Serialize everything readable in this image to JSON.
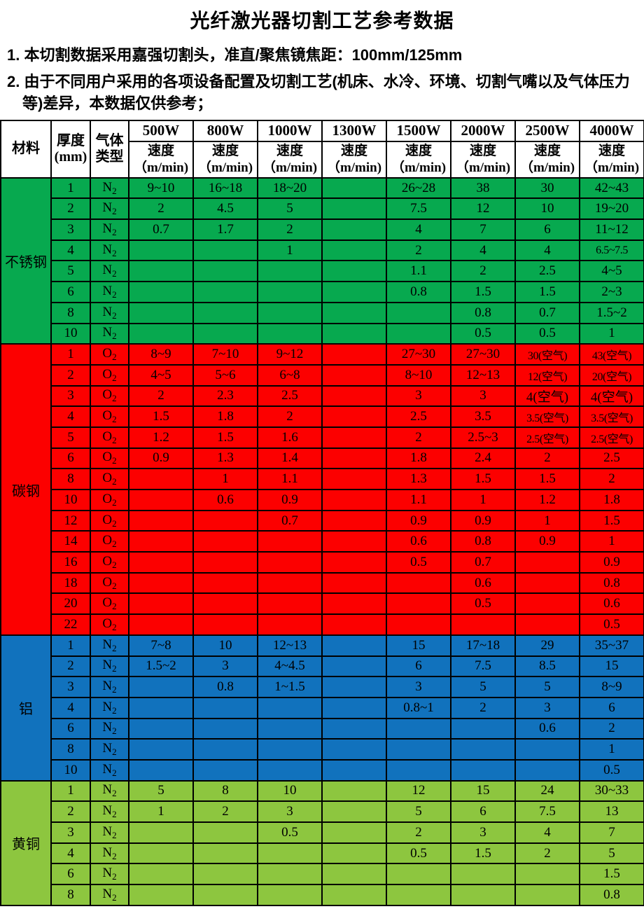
{
  "title": "光纤激光器切割工艺参考数据",
  "notes": {
    "note1": "1. 本切割数据采用嘉强切割头，准直/聚焦镜焦距：100mm/125mm",
    "note2": "2. 由于不同用户采用的各项设备配置及切割工艺(机床、水冷、环境、切割气嘴以及气体压力等)差异，本数据仅供参考；"
  },
  "table": {
    "headers": {
      "material": "材料",
      "thickness": "厚度\n(mm)",
      "gas": "气体\n类型",
      "speed": "速度",
      "speed_unit": "（m/min)"
    },
    "powers": [
      "500W",
      "800W",
      "1000W",
      "1300W",
      "1500W",
      "2000W",
      "2500W",
      "4000W"
    ],
    "colors": {
      "stainless": "#07a94f",
      "carbon": "#fc0000",
      "aluminum": "#1172bd",
      "brass": "#8dc63f"
    },
    "sections": [
      {
        "material": "不锈钢",
        "color_key": "stainless",
        "rows": [
          {
            "thickness": "1",
            "gas": "N2",
            "speeds": [
              "9~10",
              "16~18",
              "18~20",
              "",
              "26~28",
              "38",
              "30",
              "42~43"
            ]
          },
          {
            "thickness": "2",
            "gas": "N2",
            "speeds": [
              "2",
              "4.5",
              "5",
              "",
              "7.5",
              "12",
              "10",
              "19~20"
            ]
          },
          {
            "thickness": "3",
            "gas": "N2",
            "speeds": [
              "0.7",
              "1.7",
              "2",
              "",
              "4",
              "7",
              "6",
              "11~12"
            ]
          },
          {
            "thickness": "4",
            "gas": "N2",
            "speeds": [
              "",
              "",
              "1",
              "",
              "2",
              "4",
              "4",
              "6.5~7.5"
            ]
          },
          {
            "thickness": "5",
            "gas": "N2",
            "speeds": [
              "",
              "",
              "",
              "",
              "1.1",
              "2",
              "2.5",
              "4~5"
            ]
          },
          {
            "thickness": "6",
            "gas": "N2",
            "speeds": [
              "",
              "",
              "",
              "",
              "0.8",
              "1.5",
              "1.5",
              "2~3"
            ]
          },
          {
            "thickness": "8",
            "gas": "N2",
            "speeds": [
              "",
              "",
              "",
              "",
              "",
              "0.8",
              "0.7",
              "1.5~2"
            ]
          },
          {
            "thickness": "10",
            "gas": "N2",
            "speeds": [
              "",
              "",
              "",
              "",
              "",
              "0.5",
              "0.5",
              "1"
            ]
          }
        ]
      },
      {
        "material": "碳钢",
        "color_key": "carbon",
        "rows": [
          {
            "thickness": "1",
            "gas": "O2",
            "speeds": [
              "8~9",
              "7~10",
              "9~12",
              "",
              "27~30",
              "27~30",
              "30(空气)",
              "43(空气)"
            ]
          },
          {
            "thickness": "2",
            "gas": "O2",
            "speeds": [
              "4~5",
              "5~6",
              "6~8",
              "",
              "8~10",
              "12~13",
              "12(空气)",
              "20(空气)"
            ]
          },
          {
            "thickness": "3",
            "gas": "O2",
            "speeds": [
              "2",
              "2.3",
              "2.5",
              "",
              "3",
              "3",
              "4(空气)",
              "4(空气)"
            ]
          },
          {
            "thickness": "4",
            "gas": "O2",
            "speeds": [
              "1.5",
              "1.8",
              "2",
              "",
              "2.5",
              "3.5",
              "3.5(空气)",
              "3.5(空气)"
            ]
          },
          {
            "thickness": "5",
            "gas": "O2",
            "speeds": [
              "1.2",
              "1.5",
              "1.6",
              "",
              "2",
              "2.5~3",
              "2.5(空气)",
              "2.5(空气)"
            ]
          },
          {
            "thickness": "6",
            "gas": "O2",
            "speeds": [
              "0.9",
              "1.3",
              "1.4",
              "",
              "1.8",
              "2.4",
              "2",
              "2.5"
            ]
          },
          {
            "thickness": "8",
            "gas": "O2",
            "speeds": [
              "",
              "1",
              "1.1",
              "",
              "1.3",
              "1.5",
              "1.5",
              "2"
            ]
          },
          {
            "thickness": "10",
            "gas": "O2",
            "speeds": [
              "",
              "0.6",
              "0.9",
              "",
              "1.1",
              "1",
              "1.2",
              "1.8"
            ]
          },
          {
            "thickness": "12",
            "gas": "O2",
            "speeds": [
              "",
              "",
              "0.7",
              "",
              "0.9",
              "0.9",
              "1",
              "1.5"
            ]
          },
          {
            "thickness": "14",
            "gas": "O2",
            "speeds": [
              "",
              "",
              "",
              "",
              "0.6",
              "0.8",
              "0.9",
              "1"
            ]
          },
          {
            "thickness": "16",
            "gas": "O2",
            "speeds": [
              "",
              "",
              "",
              "",
              "0.5",
              "0.7",
              "",
              "0.9"
            ]
          },
          {
            "thickness": "18",
            "gas": "O2",
            "speeds": [
              "",
              "",
              "",
              "",
              "",
              "0.6",
              "",
              "0.8"
            ]
          },
          {
            "thickness": "20",
            "gas": "O2",
            "speeds": [
              "",
              "",
              "",
              "",
              "",
              "0.5",
              "",
              "0.6"
            ]
          },
          {
            "thickness": "22",
            "gas": "O2",
            "speeds": [
              "",
              "",
              "",
              "",
              "",
              "",
              "",
              "0.5"
            ]
          }
        ]
      },
      {
        "material": "铝",
        "color_key": "aluminum",
        "rows": [
          {
            "thickness": "1",
            "gas": "N2",
            "speeds": [
              "7~8",
              "10",
              "12~13",
              "",
              "15",
              "17~18",
              "29",
              "35~37"
            ]
          },
          {
            "thickness": "2",
            "gas": "N2",
            "speeds": [
              "1.5~2",
              "3",
              "4~4.5",
              "",
              "6",
              "7.5",
              "8.5",
              "15"
            ]
          },
          {
            "thickness": "3",
            "gas": "N2",
            "speeds": [
              "",
              "0.8",
              "1~1.5",
              "",
              "3",
              "5",
              "5",
              "8~9"
            ]
          },
          {
            "thickness": "4",
            "gas": "N2",
            "speeds": [
              "",
              "",
              "",
              "",
              "0.8~1",
              "2",
              "3",
              "6"
            ]
          },
          {
            "thickness": "6",
            "gas": "N2",
            "speeds": [
              "",
              "",
              "",
              "",
              "",
              "",
              "0.6",
              "2"
            ]
          },
          {
            "thickness": "8",
            "gas": "N2",
            "speeds": [
              "",
              "",
              "",
              "",
              "",
              "",
              "",
              "1"
            ]
          },
          {
            "thickness": "10",
            "gas": "N2",
            "speeds": [
              "",
              "",
              "",
              "",
              "",
              "",
              "",
              "0.5"
            ]
          }
        ]
      },
      {
        "material": "黄铜",
        "color_key": "brass",
        "rows": [
          {
            "thickness": "1",
            "gas": "N2",
            "speeds": [
              "5",
              "8",
              "10",
              "",
              "12",
              "15",
              "24",
              "30~33"
            ]
          },
          {
            "thickness": "2",
            "gas": "N2",
            "speeds": [
              "1",
              "2",
              "3",
              "",
              "5",
              "6",
              "7.5",
              "13"
            ]
          },
          {
            "thickness": "3",
            "gas": "N2",
            "speeds": [
              "",
              "",
              "0.5",
              "",
              "2",
              "3",
              "4",
              "7"
            ]
          },
          {
            "thickness": "4",
            "gas": "N2",
            "speeds": [
              "",
              "",
              "",
              "",
              "0.5",
              "1.5",
              "2",
              "5"
            ]
          },
          {
            "thickness": "6",
            "gas": "N2",
            "speeds": [
              "",
              "",
              "",
              "",
              "",
              "",
              "",
              "1.5"
            ]
          },
          {
            "thickness": "8",
            "gas": "N2",
            "speeds": [
              "",
              "",
              "",
              "",
              "",
              "",
              "",
              "0.8"
            ]
          }
        ]
      }
    ]
  }
}
